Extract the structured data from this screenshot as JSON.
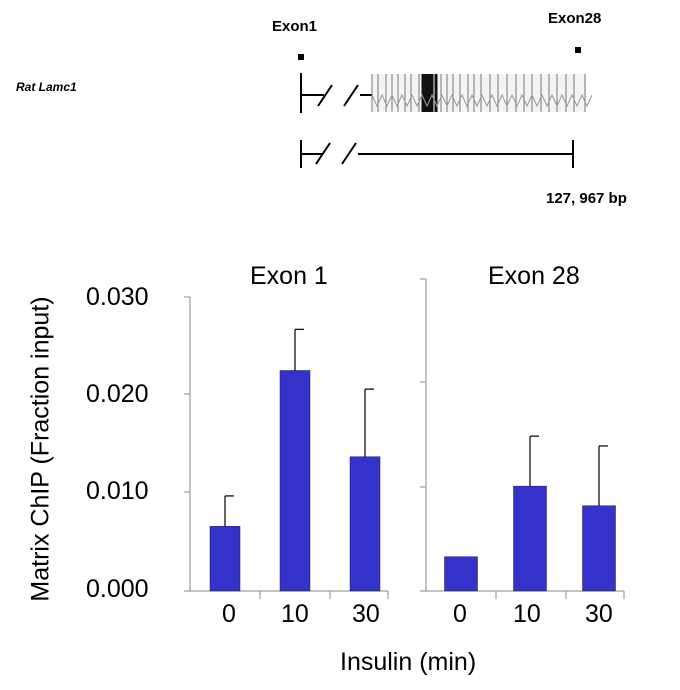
{
  "gene_map": {
    "species_gene_label": "Rat Lamc1",
    "exon_start_label": "Exon1",
    "exon_end_label": "Exon28",
    "length_label": "127, 967 bp"
  },
  "chart_data": [
    {
      "type": "bar",
      "title": "Exon 1",
      "categories": [
        "0",
        "10",
        "30"
      ],
      "series": [
        {
          "values": [
            0.0066,
            0.0225,
            0.0137
          ],
          "error": [
            0.0031,
            0.0042,
            0.0069
          ]
        }
      ],
      "ylabel": "Matrix ChIP (Fraction input)",
      "xlabel": "Insulin (min)",
      "ylim": [
        0,
        0.03
      ],
      "yticks": [
        "0.000",
        "0.010",
        "0.020",
        "0.030"
      ],
      "bar_color": "#3333cc"
    },
    {
      "type": "bar",
      "title": "Exon 28",
      "categories": [
        "0",
        "10",
        "30"
      ],
      "series": [
        {
          "values": [
            0.0035,
            0.0107,
            0.0087
          ],
          "error": [
            0.0,
            0.0051,
            0.0061
          ]
        }
      ],
      "ylabel": "",
      "xlabel": "Insulin (min)",
      "ylim": [
        0,
        0.03
      ],
      "yticks": [],
      "bar_color": "#3333cc"
    }
  ]
}
